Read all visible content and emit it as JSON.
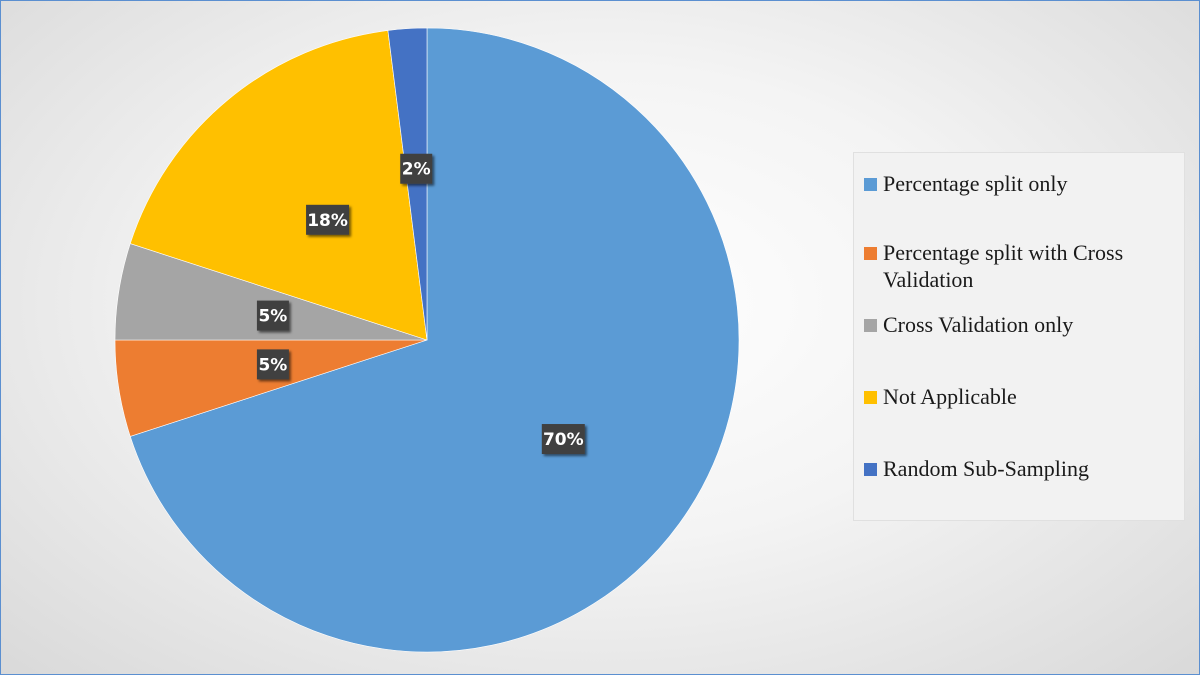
{
  "chart_data": {
    "type": "pie",
    "title": "",
    "categories": [
      "Percentage split only",
      "Percentage split with Cross Validation",
      "Cross Validation only",
      "Not Applicable",
      "Random Sub-Sampling"
    ],
    "values": [
      70,
      5,
      5,
      18,
      2
    ],
    "data_labels": [
      "70%",
      "5%",
      "5%",
      "18%",
      "2%"
    ],
    "colors": [
      "#5b9bd5",
      "#ed7d31",
      "#a5a5a5",
      "#ffc000",
      "#4472c4"
    ],
    "legend_position": "right"
  }
}
